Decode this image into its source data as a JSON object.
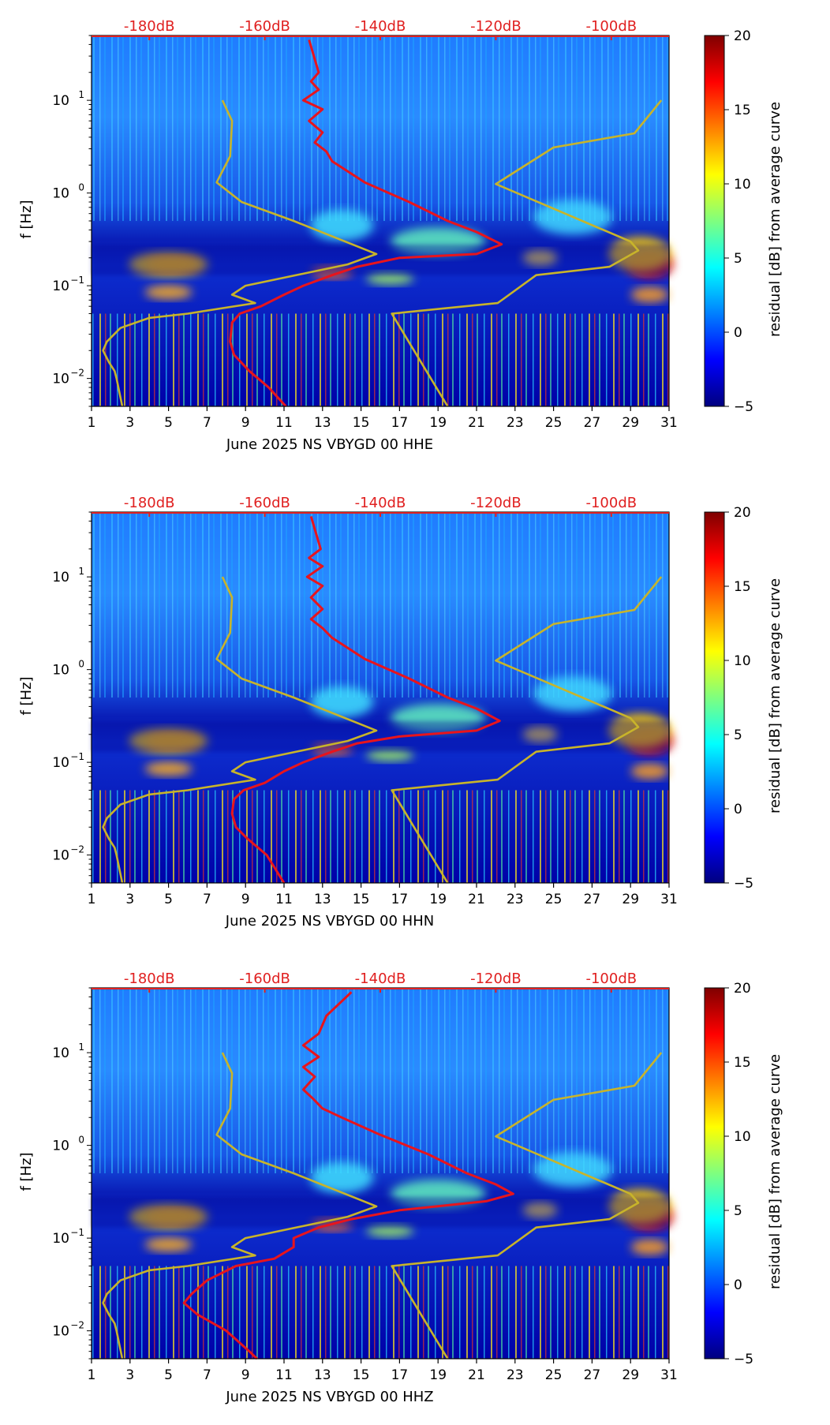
{
  "colors": {
    "noise_curve": "#e8141c",
    "model_curve": "#c8b42a",
    "db_label": "#e02020",
    "colormap": [
      "#00007f",
      "#0000ff",
      "#007fff",
      "#00ffff",
      "#7fff7f",
      "#ffff00",
      "#ff7f00",
      "#ff0000",
      "#7f0000"
    ]
  },
  "chart_data": [
    {
      "type": "heatmap",
      "xlabel": "June 2025 NS VBYGD 00 HHE",
      "ylabel": "f [Hz]",
      "x_ticks": [
        "1",
        "3",
        "5",
        "7",
        "9",
        "11",
        "13",
        "15",
        "17",
        "19",
        "21",
        "23",
        "25",
        "27",
        "29",
        "31"
      ],
      "xlim": [
        1,
        31
      ],
      "ylim_hz": [
        0.005,
        50
      ],
      "y_ticks": [
        {
          "label": "10",
          "exp": "−2",
          "value": 0.01
        },
        {
          "label": "10",
          "exp": "−1",
          "value": 0.1
        },
        {
          "label": "10",
          "exp": "0",
          "value": 1
        },
        {
          "label": "10",
          "exp": "1",
          "value": 10
        }
      ],
      "top_axis_labels": [
        "-180dB",
        "-160dB",
        "-140dB",
        "-120dB",
        "-100dB"
      ],
      "top_axis_db": [
        -180,
        -160,
        -140,
        -120,
        -100
      ],
      "colorbar": {
        "label": "residual [dB] from average curve",
        "ticks": [
          "20",
          "15",
          "10",
          "5",
          "0",
          "−5"
        ],
        "range": [
          -5,
          20
        ]
      },
      "series": [
        {
          "name": "noise-curve",
          "points": [
            [
              12.3,
              45
            ],
            [
              12.8,
              20
            ],
            [
              12.4,
              16
            ],
            [
              12.8,
              13
            ],
            [
              12.0,
              10
            ],
            [
              13.0,
              8
            ],
            [
              12.3,
              6
            ],
            [
              13.0,
              4.5
            ],
            [
              12.6,
              3.5
            ],
            [
              13.2,
              2.8
            ],
            [
              13.5,
              2.2
            ],
            [
              15.2,
              1.3
            ],
            [
              17.5,
              0.8
            ],
            [
              19.5,
              0.5
            ],
            [
              21.0,
              0.38
            ],
            [
              22.3,
              0.28
            ],
            [
              21.0,
              0.22
            ],
            [
              17.0,
              0.2
            ],
            [
              14.8,
              0.16
            ],
            [
              13.5,
              0.13
            ],
            [
              12.0,
              0.1
            ],
            [
              11.0,
              0.08
            ],
            [
              9.8,
              0.06
            ],
            [
              8.7,
              0.05
            ],
            [
              8.3,
              0.04
            ],
            [
              8.2,
              0.025
            ],
            [
              8.4,
              0.018
            ],
            [
              9.2,
              0.012
            ],
            [
              10.2,
              0.008
            ],
            [
              11.1,
              0.005
            ]
          ]
        },
        {
          "name": "model-curve-low",
          "points": [
            [
              7.8,
              10
            ],
            [
              8.3,
              6
            ],
            [
              8.2,
              2.5
            ],
            [
              7.5,
              1.3
            ],
            [
              8.8,
              0.8
            ],
            [
              11.5,
              0.5
            ],
            [
              15.8,
              0.22
            ],
            [
              14.3,
              0.17
            ],
            [
              9.0,
              0.1
            ],
            [
              8.3,
              0.08
            ],
            [
              9.5,
              0.065
            ],
            [
              6.0,
              0.05
            ],
            [
              4.0,
              0.045
            ],
            [
              2.5,
              0.035
            ],
            [
              1.8,
              0.025
            ],
            [
              1.6,
              0.02
            ],
            [
              1.9,
              0.015
            ],
            [
              2.2,
              0.012
            ],
            [
              2.3,
              0.01
            ],
            [
              2.6,
              0.005
            ]
          ]
        },
        {
          "name": "model-curve-high",
          "points": [
            [
              30.6,
              10
            ],
            [
              29.2,
              4.4
            ],
            [
              25.0,
              3.1
            ],
            [
              22.0,
              1.25
            ],
            [
              29.0,
              0.3
            ],
            [
              29.4,
              0.24
            ],
            [
              27.9,
              0.16
            ],
            [
              24.1,
              0.13
            ],
            [
              22.1,
              0.065
            ],
            [
              16.6,
              0.05
            ],
            [
              19.5,
              0.005
            ]
          ]
        }
      ]
    },
    {
      "type": "heatmap",
      "xlabel": "June 2025 NS VBYGD 00 HHN",
      "ylabel": "f [Hz]",
      "x_ticks": [
        "1",
        "3",
        "5",
        "7",
        "9",
        "11",
        "13",
        "15",
        "17",
        "19",
        "21",
        "23",
        "25",
        "27",
        "29",
        "31"
      ],
      "xlim": [
        1,
        31
      ],
      "ylim_hz": [
        0.005,
        50
      ],
      "y_ticks": [
        {
          "label": "10",
          "exp": "−2",
          "value": 0.01
        },
        {
          "label": "10",
          "exp": "−1",
          "value": 0.1
        },
        {
          "label": "10",
          "exp": "0",
          "value": 1
        },
        {
          "label": "10",
          "exp": "1",
          "value": 10
        }
      ],
      "top_axis_labels": [
        "-180dB",
        "-160dB",
        "-140dB",
        "-120dB",
        "-100dB"
      ],
      "top_axis_db": [
        -180,
        -160,
        -140,
        -120,
        -100
      ],
      "colorbar": {
        "label": "residual [dB] from average curve",
        "ticks": [
          "20",
          "15",
          "10",
          "5",
          "0",
          "−5"
        ],
        "range": [
          -5,
          20
        ]
      },
      "series": [
        {
          "name": "noise-curve",
          "points": [
            [
              12.4,
              45
            ],
            [
              12.9,
              20
            ],
            [
              12.3,
              16
            ],
            [
              13.0,
              13
            ],
            [
              12.2,
              10
            ],
            [
              13.0,
              8
            ],
            [
              12.4,
              6
            ],
            [
              13.0,
              4.5
            ],
            [
              12.4,
              3.5
            ],
            [
              13.0,
              2.8
            ],
            [
              13.5,
              2.2
            ],
            [
              15.2,
              1.3
            ],
            [
              17.5,
              0.8
            ],
            [
              19.5,
              0.5
            ],
            [
              21.0,
              0.38
            ],
            [
              22.2,
              0.28
            ],
            [
              21.0,
              0.22
            ],
            [
              17.0,
              0.19
            ],
            [
              14.8,
              0.16
            ],
            [
              13.5,
              0.13
            ],
            [
              12.0,
              0.1
            ],
            [
              11.0,
              0.08
            ],
            [
              10.0,
              0.06
            ],
            [
              8.9,
              0.05
            ],
            [
              8.4,
              0.04
            ],
            [
              8.3,
              0.028
            ],
            [
              8.5,
              0.02
            ],
            [
              9.1,
              0.015
            ],
            [
              10.1,
              0.01
            ],
            [
              11.0,
              0.005
            ]
          ]
        },
        {
          "name": "model-curve-low",
          "points": [
            [
              7.8,
              10
            ],
            [
              8.3,
              6
            ],
            [
              8.2,
              2.5
            ],
            [
              7.5,
              1.3
            ],
            [
              8.8,
              0.8
            ],
            [
              11.5,
              0.5
            ],
            [
              15.8,
              0.22
            ],
            [
              14.3,
              0.17
            ],
            [
              9.0,
              0.1
            ],
            [
              8.3,
              0.08
            ],
            [
              9.5,
              0.065
            ],
            [
              6.0,
              0.05
            ],
            [
              4.0,
              0.045
            ],
            [
              2.5,
              0.035
            ],
            [
              1.8,
              0.025
            ],
            [
              1.6,
              0.02
            ],
            [
              1.9,
              0.015
            ],
            [
              2.2,
              0.012
            ],
            [
              2.3,
              0.01
            ],
            [
              2.6,
              0.005
            ]
          ]
        },
        {
          "name": "model-curve-high",
          "points": [
            [
              30.6,
              10
            ],
            [
              29.2,
              4.4
            ],
            [
              25.0,
              3.1
            ],
            [
              22.0,
              1.25
            ],
            [
              29.0,
              0.3
            ],
            [
              29.4,
              0.24
            ],
            [
              27.9,
              0.16
            ],
            [
              24.1,
              0.13
            ],
            [
              22.1,
              0.065
            ],
            [
              16.6,
              0.05
            ],
            [
              19.5,
              0.005
            ]
          ]
        }
      ]
    },
    {
      "type": "heatmap",
      "xlabel": "June 2025 NS VBYGD 00 HHZ",
      "ylabel": "f [Hz]",
      "x_ticks": [
        "1",
        "3",
        "5",
        "7",
        "9",
        "11",
        "13",
        "15",
        "17",
        "19",
        "21",
        "23",
        "25",
        "27",
        "29",
        "31"
      ],
      "xlim": [
        1,
        31
      ],
      "ylim_hz": [
        0.005,
        50
      ],
      "y_ticks": [
        {
          "label": "10",
          "exp": "−2",
          "value": 0.01
        },
        {
          "label": "10",
          "exp": "−1",
          "value": 0.1
        },
        {
          "label": "10",
          "exp": "0",
          "value": 1
        },
        {
          "label": "10",
          "exp": "1",
          "value": 10
        }
      ],
      "top_axis_labels": [
        "-180dB",
        "-160dB",
        "-140dB",
        "-120dB",
        "-100dB"
      ],
      "top_axis_db": [
        -180,
        -160,
        -140,
        -120,
        -100
      ],
      "colorbar": {
        "label": "residual [dB] from average curve",
        "ticks": [
          "20",
          "15",
          "10",
          "5",
          "0",
          "−5"
        ],
        "range": [
          -5,
          20
        ]
      },
      "series": [
        {
          "name": "noise-curve",
          "points": [
            [
              14.5,
              45
            ],
            [
              13.2,
              25
            ],
            [
              12.8,
              16
            ],
            [
              12.0,
              12
            ],
            [
              12.8,
              9
            ],
            [
              12.0,
              7
            ],
            [
              12.6,
              5.5
            ],
            [
              12.0,
              4
            ],
            [
              12.5,
              3.2
            ],
            [
              13.0,
              2.5
            ],
            [
              14.0,
              2.0
            ],
            [
              16.0,
              1.3
            ],
            [
              18.5,
              0.8
            ],
            [
              20.5,
              0.5
            ],
            [
              22.0,
              0.38
            ],
            [
              22.9,
              0.3
            ],
            [
              21.5,
              0.25
            ],
            [
              17.0,
              0.2
            ],
            [
              14.5,
              0.16
            ],
            [
              12.8,
              0.13
            ],
            [
              11.5,
              0.1
            ],
            [
              11.5,
              0.08
            ],
            [
              10.5,
              0.06
            ],
            [
              8.5,
              0.05
            ],
            [
              7.0,
              0.035
            ],
            [
              6.2,
              0.025
            ],
            [
              5.8,
              0.02
            ],
            [
              6.5,
              0.015
            ],
            [
              8.0,
              0.01
            ],
            [
              9.2,
              0.006
            ],
            [
              9.6,
              0.005
            ]
          ]
        },
        {
          "name": "model-curve-low",
          "points": [
            [
              7.8,
              10
            ],
            [
              8.3,
              6
            ],
            [
              8.2,
              2.5
            ],
            [
              7.5,
              1.3
            ],
            [
              8.8,
              0.8
            ],
            [
              11.5,
              0.5
            ],
            [
              15.8,
              0.22
            ],
            [
              14.3,
              0.17
            ],
            [
              9.0,
              0.1
            ],
            [
              8.3,
              0.08
            ],
            [
              9.5,
              0.065
            ],
            [
              6.0,
              0.05
            ],
            [
              4.0,
              0.045
            ],
            [
              2.5,
              0.035
            ],
            [
              1.8,
              0.025
            ],
            [
              1.6,
              0.02
            ],
            [
              1.9,
              0.015
            ],
            [
              2.2,
              0.012
            ],
            [
              2.3,
              0.01
            ],
            [
              2.6,
              0.005
            ]
          ]
        },
        {
          "name": "model-curve-high",
          "points": [
            [
              30.6,
              10
            ],
            [
              29.2,
              4.4
            ],
            [
              25.0,
              3.1
            ],
            [
              22.0,
              1.25
            ],
            [
              29.0,
              0.3
            ],
            [
              29.4,
              0.24
            ],
            [
              27.9,
              0.16
            ],
            [
              24.1,
              0.13
            ],
            [
              22.1,
              0.065
            ],
            [
              16.6,
              0.05
            ],
            [
              19.5,
              0.005
            ]
          ]
        }
      ]
    }
  ]
}
